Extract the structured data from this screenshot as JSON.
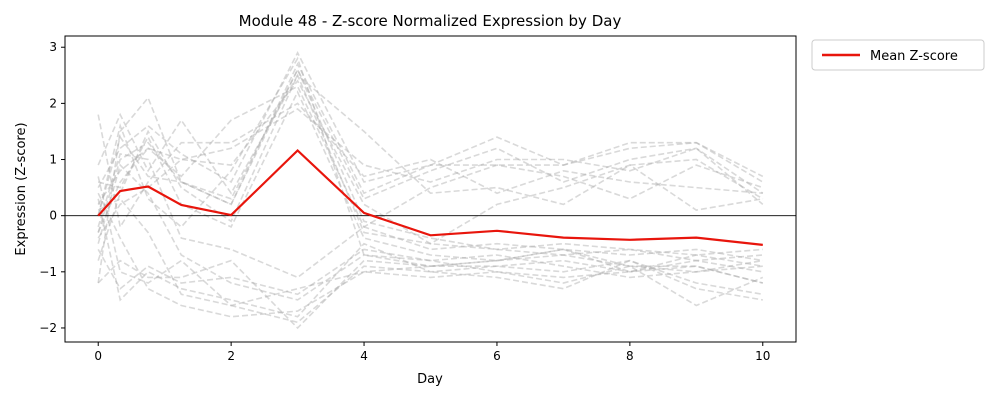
{
  "chart_data": {
    "type": "line",
    "title": "Module 48 - Z-score Normalized Expression by Day",
    "xlabel": "Day",
    "ylabel": "Expression (Z-score)",
    "xlim": [
      -0.5,
      10.5
    ],
    "ylim": [
      -2.25,
      3.2
    ],
    "xticks": [
      0,
      2,
      4,
      6,
      8,
      10
    ],
    "yticks": [
      -2,
      -1,
      0,
      1,
      2,
      3
    ],
    "reference_line_y": 0,
    "legend_position": "outside-right",
    "grid": false,
    "x": [
      0,
      0.33,
      0.75,
      1.25,
      2,
      3,
      4,
      5,
      6,
      7,
      8,
      9,
      10
    ],
    "mean_series": {
      "name": "Mean Z-score",
      "color": "#e8150c",
      "values": [
        0.0,
        0.44,
        0.52,
        0.19,
        0.01,
        1.16,
        0.05,
        -0.35,
        -0.27,
        -0.39,
        -0.43,
        -0.39,
        -0.52
      ]
    },
    "gene_series_color": "#aaaaaa",
    "gene_series": [
      [
        0.5,
        1.2,
        1.6,
        1.1,
        0.6,
        2.9,
        0.6,
        0.9,
        1.4,
        0.9,
        1.3,
        1.3,
        0.7
      ],
      [
        -0.3,
        1.0,
        1.3,
        0.6,
        0.3,
        2.6,
        0.3,
        0.8,
        1.2,
        0.6,
        1.0,
        1.2,
        0.4
      ],
      [
        0.9,
        1.8,
        0.8,
        1.7,
        0.4,
        2.5,
        1.5,
        0.4,
        0.5,
        0.2,
        0.9,
        1.0,
        0.3
      ],
      [
        -1.2,
        1.5,
        2.1,
        0.6,
        0.2,
        2.7,
        0.4,
        0.9,
        0.9,
        0.9,
        1.2,
        1.3,
        0.6
      ],
      [
        0.2,
        0.8,
        1.2,
        0.7,
        1.7,
        2.3,
        -0.2,
        0.5,
        0.9,
        0.7,
        0.3,
        0.9,
        0.5
      ],
      [
        1.8,
        -0.2,
        0.6,
        1.3,
        1.3,
        2.0,
        0.7,
        1.0,
        0.4,
        0.8,
        0.6,
        0.5,
        0.4
      ],
      [
        -0.4,
        0.2,
        0.5,
        1.0,
        0.9,
        2.4,
        0.2,
        -0.5,
        0.2,
        0.5,
        0.9,
        0.1,
        0.3
      ],
      [
        0.6,
        0.5,
        1.4,
        0.2,
        -0.2,
        2.2,
        -0.4,
        -0.7,
        -0.8,
        -0.7,
        -0.9,
        -1.0,
        -0.9
      ],
      [
        0.0,
        1.6,
        0.3,
        -0.2,
        0.8,
        2.8,
        -0.7,
        -0.9,
        -0.8,
        -0.6,
        -1.0,
        -0.8,
        -1.0
      ],
      [
        -0.8,
        0.4,
        1.5,
        0.5,
        -0.1,
        2.5,
        -0.3,
        -0.5,
        -0.6,
        -0.7,
        -0.6,
        -0.8,
        -0.7
      ],
      [
        0.3,
        -1.5,
        -1.0,
        -1.3,
        -1.5,
        -1.8,
        -0.5,
        -1.0,
        -0.9,
        -1.0,
        -0.8,
        -1.2,
        -1.4
      ],
      [
        -1.2,
        -0.8,
        -1.1,
        -1.1,
        -0.8,
        -2.0,
        -0.8,
        -0.9,
        -0.9,
        -0.8,
        -1.0,
        -0.9,
        -1.2
      ],
      [
        0.4,
        -0.4,
        -1.3,
        -1.6,
        -1.8,
        -1.7,
        -1.0,
        -1.1,
        -1.0,
        -1.2,
        -0.9,
        -1.6,
        -1.1
      ],
      [
        -0.6,
        -1.3,
        -0.9,
        -1.2,
        -1.1,
        -1.4,
        -0.6,
        -0.8,
        -0.7,
        -0.9,
        -1.1,
        -1.0,
        -0.8
      ],
      [
        0.1,
        0.3,
        -0.3,
        -1.4,
        -1.6,
        -1.9,
        -0.9,
        -1.0,
        -1.1,
        -1.3,
        -0.8,
        -1.3,
        -1.5
      ],
      [
        -0.2,
        1.1,
        1.0,
        -0.4,
        -0.6,
        -1.1,
        -0.2,
        -0.6,
        -0.5,
        -0.6,
        -0.7,
        -0.6,
        -0.8
      ],
      [
        0.7,
        -1.0,
        -1.2,
        -0.8,
        -1.6,
        -1.3,
        -1.0,
        -0.9,
        -0.8,
        -0.6,
        -0.9,
        -0.9,
        -1.2
      ],
      [
        -0.5,
        0.9,
        0.4,
        -0.7,
        -1.2,
        -1.5,
        -0.7,
        -0.8,
        -1.0,
        -1.1,
        -1.0,
        -0.7,
        -0.9
      ],
      [
        0.0,
        1.4,
        0.7,
        0.6,
        0.2,
        2.6,
        -0.1,
        -0.4,
        -0.6,
        -0.5,
        -0.6,
        -0.7,
        -0.6
      ],
      [
        -0.3,
        0.6,
        1.2,
        1.0,
        1.2,
        1.9,
        0.9,
        0.6,
        1.0,
        1.0,
        0.8,
        1.2,
        0.2
      ]
    ]
  }
}
